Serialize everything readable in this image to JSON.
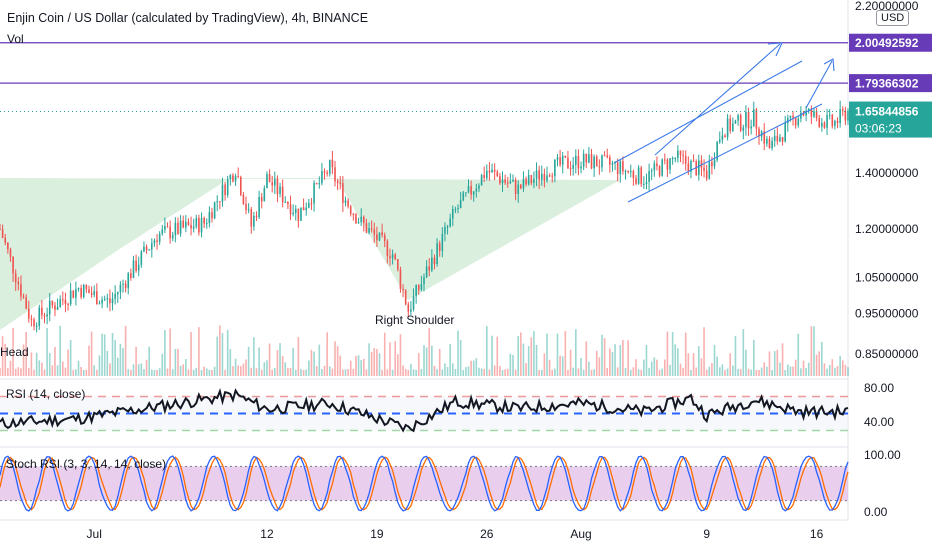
{
  "header": {
    "symbol_title": "Enjin Coin / US Dollar (calculated by TradingView), 4h, BINANCE",
    "volume_label": "Vol",
    "currency_badge": "USD"
  },
  "chart_data": {
    "type": "candlestick",
    "price_axis": {
      "scale": "log",
      "range": [
        0.81,
        2.2
      ],
      "ticks": [
        "2.20000000",
        "1.40000000",
        "1.20000000",
        "1.05000000",
        "0.95000000",
        "0.85000000"
      ]
    },
    "x_axis": {
      "tick_labels": [
        "Jul",
        "12",
        "19",
        "26",
        "Aug",
        "9",
        "16"
      ],
      "tick_dates": [
        "2021-07-01",
        "2021-07-12",
        "2021-07-19",
        "2021-07-26",
        "2021-08-01",
        "2021-08-09",
        "2021-08-16"
      ],
      "range": [
        "2021-06-25",
        "2021-08-18"
      ]
    },
    "price_anchors": [
      {
        "date": "2021-06-25",
        "price": 1.2
      },
      {
        "date": "2021-06-27",
        "price": 0.93
      },
      {
        "date": "2021-06-30",
        "price": 1.02
      },
      {
        "date": "2021-07-02",
        "price": 0.98
      },
      {
        "date": "2021-07-05",
        "price": 1.18
      },
      {
        "date": "2021-07-08",
        "price": 1.22
      },
      {
        "date": "2021-07-10",
        "price": 1.42
      },
      {
        "date": "2021-07-11",
        "price": 1.21
      },
      {
        "date": "2021-07-12",
        "price": 1.38
      },
      {
        "date": "2021-07-14",
        "price": 1.25
      },
      {
        "date": "2021-07-16",
        "price": 1.42
      },
      {
        "date": "2021-07-17",
        "price": 1.3
      },
      {
        "date": "2021-07-18",
        "price": 1.22
      },
      {
        "date": "2021-07-20",
        "price": 1.12
      },
      {
        "date": "2021-07-21",
        "price": 0.96
      },
      {
        "date": "2021-07-22",
        "price": 1.05
      },
      {
        "date": "2021-07-24",
        "price": 1.26
      },
      {
        "date": "2021-07-26",
        "price": 1.41
      },
      {
        "date": "2021-07-28",
        "price": 1.34
      },
      {
        "date": "2021-07-30",
        "price": 1.42
      },
      {
        "date": "2021-08-01",
        "price": 1.45
      },
      {
        "date": "2021-08-03",
        "price": 1.43
      },
      {
        "date": "2021-08-05",
        "price": 1.38
      },
      {
        "date": "2021-08-07",
        "price": 1.46
      },
      {
        "date": "2021-08-09",
        "price": 1.4
      },
      {
        "date": "2021-08-10",
        "price": 1.58
      },
      {
        "date": "2021-08-12",
        "price": 1.63
      },
      {
        "date": "2021-08-13",
        "price": 1.5
      },
      {
        "date": "2021-08-15",
        "price": 1.66
      },
      {
        "date": "2021-08-17",
        "price": 1.6
      },
      {
        "date": "2021-08-18",
        "price": 1.66
      }
    ],
    "horizontal_levels": [
      {
        "price": 2.00492592,
        "label": "2.00492592",
        "color": "#673ab7"
      },
      {
        "price": 1.79366302,
        "label": "1.79366302",
        "color": "#673ab7"
      }
    ],
    "current_price": {
      "price": 1.65844856,
      "label": "1.65844856",
      "countdown": "03:06:23",
      "color": "#26a69a"
    },
    "annotations": [
      "Head",
      "Right Shoulder"
    ],
    "colors": {
      "up": "#26a69a",
      "down": "#ef5350",
      "pattern_fill": "#cfe9d4",
      "trend_lines": "#3d7be8"
    },
    "rsi": {
      "title": "RSI (14, close)",
      "ticks": [
        "80.00",
        "40.00"
      ],
      "upper": 70,
      "mid": 50,
      "lower": 30,
      "range": [
        20,
        80
      ],
      "anchors": [
        {
          "date": "2021-06-25",
          "value": 38
        },
        {
          "date": "2021-06-30",
          "value": 44
        },
        {
          "date": "2021-07-05",
          "value": 58
        },
        {
          "date": "2021-07-10",
          "value": 72
        },
        {
          "date": "2021-07-12",
          "value": 55
        },
        {
          "date": "2021-07-16",
          "value": 62
        },
        {
          "date": "2021-07-21",
          "value": 32
        },
        {
          "date": "2021-07-24",
          "value": 64
        },
        {
          "date": "2021-07-28",
          "value": 56
        },
        {
          "date": "2021-08-01",
          "value": 62
        },
        {
          "date": "2021-08-05",
          "value": 52
        },
        {
          "date": "2021-08-08",
          "value": 68
        },
        {
          "date": "2021-08-09",
          "value": 48
        },
        {
          "date": "2021-08-12",
          "value": 66
        },
        {
          "date": "2021-08-15",
          "value": 52
        },
        {
          "date": "2021-08-18",
          "value": 52
        }
      ]
    },
    "stoch_rsi": {
      "title": "Stoch RSI (3, 3, 14, 14, close)",
      "ticks": [
        "100.00",
        "0.00"
      ],
      "upper": 80,
      "lower": 20,
      "range": [
        0,
        100
      ],
      "series": [
        {
          "name": "K",
          "color": "#2962ff"
        },
        {
          "name": "D",
          "color": "#ff6d00"
        }
      ],
      "band_color": "#e1bee7"
    }
  }
}
